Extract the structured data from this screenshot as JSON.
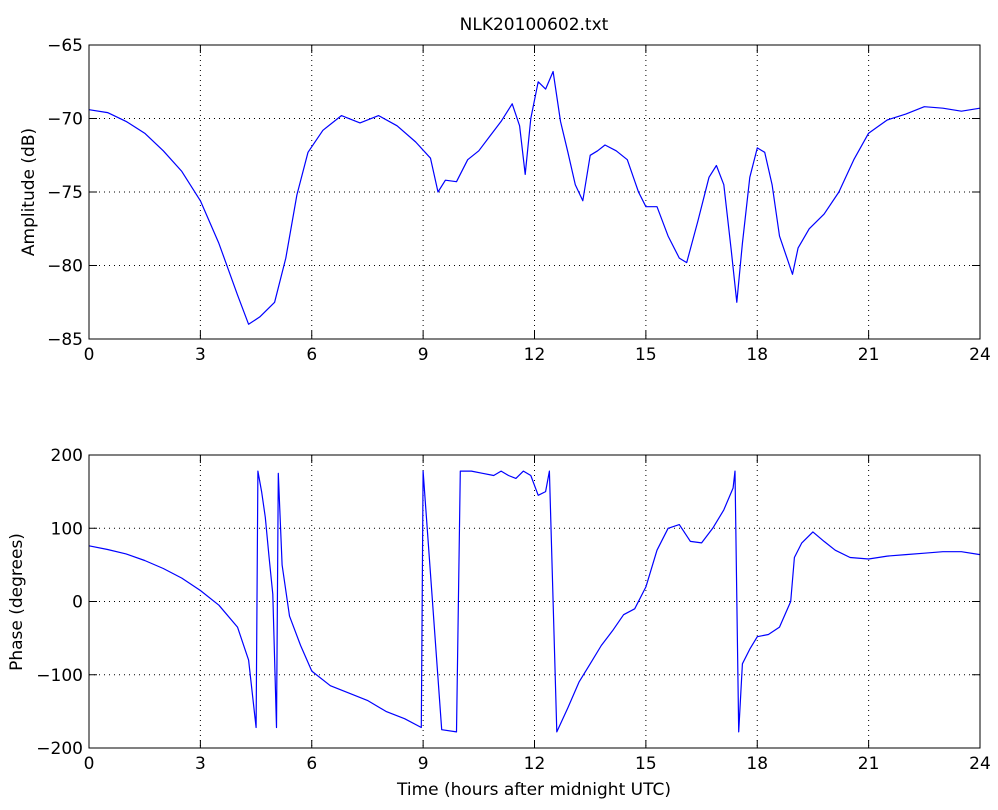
{
  "figure": {
    "title": "NLK20100602.txt"
  },
  "colors": {
    "line": "#0000ff",
    "axes": "#000000",
    "grid": "#000000",
    "background": "#ffffff"
  },
  "chart_data": [
    {
      "type": "line",
      "title": "NLK20100602.txt",
      "xlabel": "",
      "ylabel": "Amplitude (dB)",
      "xlim": [
        0,
        24
      ],
      "ylim": [
        -85,
        -65
      ],
      "xticks": [
        "0",
        "3",
        "6",
        "9",
        "12",
        "15",
        "18",
        "21",
        "24"
      ],
      "yticks": [
        "-85",
        "-80",
        "-75",
        "-70",
        "-65"
      ],
      "grid": true,
      "series": [
        {
          "x": [
            0,
            0.5,
            1.0,
            1.5,
            2.0,
            2.5,
            3.0,
            3.5,
            4.0,
            4.3,
            4.6,
            5.0,
            5.3,
            5.6,
            5.9,
            6.3,
            6.8,
            7.3,
            7.8,
            8.3,
            8.8,
            9.2,
            9.4,
            9.6,
            9.9,
            10.2,
            10.5,
            10.8,
            11.1,
            11.4,
            11.6,
            11.75,
            11.9,
            12.1,
            12.3,
            12.5,
            12.7,
            12.9,
            13.1,
            13.3,
            13.5,
            13.7,
            13.9,
            14.2,
            14.5,
            14.8,
            15.0,
            15.3,
            15.6,
            15.9,
            16.1,
            16.4,
            16.7,
            16.9,
            17.1,
            17.3,
            17.45,
            17.6,
            17.8,
            18.0,
            18.2,
            18.4,
            18.6,
            18.8,
            18.95,
            19.1,
            19.4,
            19.8,
            20.2,
            20.6,
            21.0,
            21.5,
            22.0,
            22.5,
            23.0,
            23.5,
            24.0
          ],
          "y": [
            -69.4,
            -69.6,
            -70.2,
            -71.0,
            -72.2,
            -73.6,
            -75.6,
            -78.5,
            -82.0,
            -84.0,
            -83.5,
            -82.5,
            -79.5,
            -75.2,
            -72.3,
            -70.8,
            -69.8,
            -70.3,
            -69.8,
            -70.5,
            -71.6,
            -72.7,
            -75.0,
            -74.2,
            -74.3,
            -72.8,
            -72.2,
            -71.2,
            -70.2,
            -69.0,
            -70.5,
            -73.8,
            -70.0,
            -67.5,
            -68.0,
            -66.8,
            -70.2,
            -72.3,
            -74.5,
            -75.6,
            -72.5,
            -72.2,
            -71.8,
            -72.2,
            -72.8,
            -75.0,
            -76.0,
            -76.0,
            -78.0,
            -79.5,
            -79.8,
            -77.0,
            -74.0,
            -73.2,
            -74.5,
            -79.0,
            -82.5,
            -78.5,
            -74.0,
            -72.0,
            -72.3,
            -74.5,
            -78.0,
            -79.5,
            -80.6,
            -78.8,
            -77.5,
            -76.5,
            -75.0,
            -72.8,
            -71.0,
            -70.1,
            -69.7,
            -69.2,
            -69.3,
            -69.5,
            -69.3
          ]
        }
      ]
    },
    {
      "type": "line",
      "title": "",
      "xlabel": "Time (hours after midnight UTC)",
      "ylabel": "Phase (degrees)",
      "xlim": [
        0,
        24
      ],
      "ylim": [
        -200,
        200
      ],
      "xticks": [
        "0",
        "3",
        "6",
        "9",
        "12",
        "15",
        "18",
        "21",
        "24"
      ],
      "yticks": [
        "-200",
        "-100",
        "0",
        "100",
        "200"
      ],
      "grid": true,
      "series": [
        {
          "x": [
            0,
            0.5,
            1.0,
            1.5,
            2.0,
            2.5,
            3.0,
            3.5,
            4.0,
            4.3,
            4.5,
            4.55,
            4.65,
            4.75,
            4.85,
            4.95,
            5.05,
            5.1,
            5.2,
            5.4,
            5.7,
            6.0,
            6.5,
            7.0,
            7.5,
            8.0,
            8.5,
            8.95,
            9.0,
            9.5,
            9.9,
            10.0,
            10.3,
            10.6,
            10.9,
            11.1,
            11.3,
            11.5,
            11.7,
            11.9,
            12.1,
            12.3,
            12.4,
            12.6,
            12.9,
            13.2,
            13.5,
            13.8,
            14.1,
            14.4,
            14.7,
            15.0,
            15.3,
            15.6,
            15.9,
            16.2,
            16.5,
            16.8,
            17.1,
            17.35,
            17.4,
            17.5,
            17.6,
            17.8,
            18.0,
            18.3,
            18.6,
            18.9,
            19.0,
            19.2,
            19.5,
            19.8,
            20.1,
            20.5,
            21.0,
            21.5,
            22.0,
            22.5,
            23.0,
            23.5,
            24.0
          ],
          "y": [
            76,
            71,
            65,
            56,
            45,
            32,
            15,
            -5,
            -35,
            -80,
            -172,
            178,
            150,
            115,
            60,
            10,
            -172,
            175,
            50,
            -20,
            -60,
            -95,
            -115,
            -125,
            -135,
            -150,
            -160,
            -172,
            178,
            -175,
            -178,
            178,
            178,
            175,
            172,
            178,
            172,
            168,
            178,
            172,
            145,
            150,
            178,
            -178,
            -145,
            -110,
            -85,
            -60,
            -40,
            -18,
            -10,
            20,
            70,
            100,
            105,
            82,
            80,
            100,
            125,
            155,
            178,
            -178,
            -85,
            -65,
            -48,
            -45,
            -35,
            0,
            60,
            80,
            95,
            82,
            70,
            60,
            58,
            62,
            64,
            66,
            68,
            68,
            64
          ]
        }
      ]
    }
  ]
}
